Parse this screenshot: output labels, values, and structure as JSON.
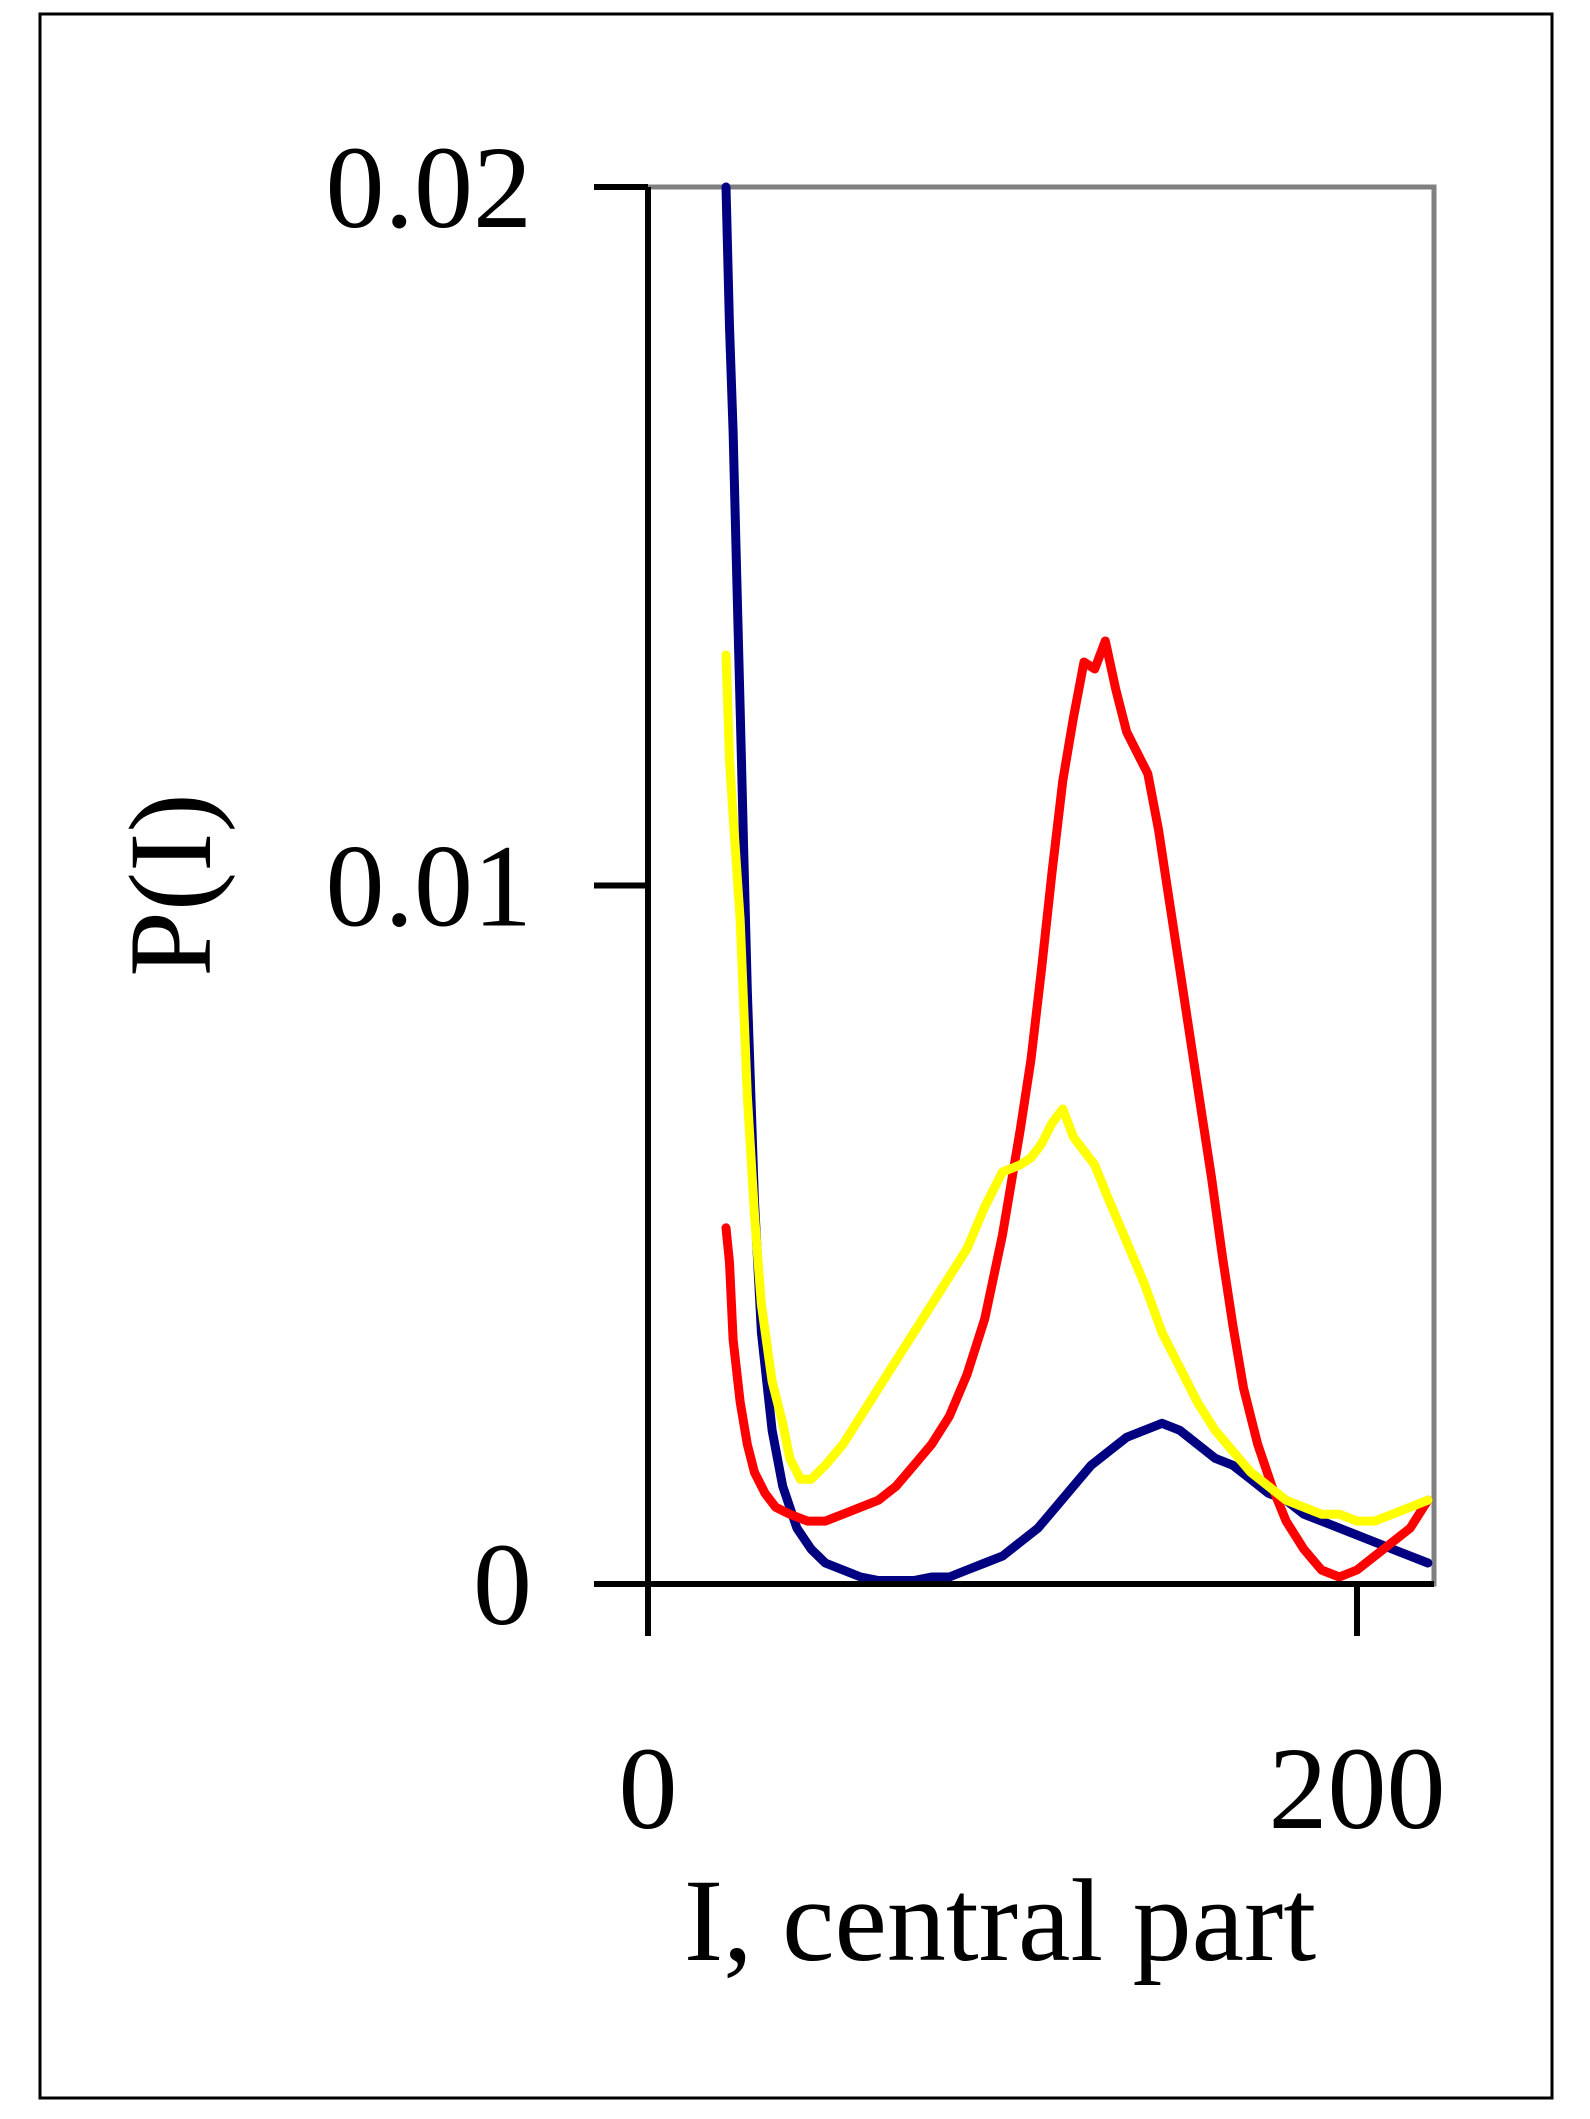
{
  "chart_data": {
    "type": "line",
    "title": "",
    "xlabel": "I, central part",
    "ylabel": "P(I)",
    "xlim": [
      0,
      220
    ],
    "ylim": [
      0,
      0.02
    ],
    "x_ticks": [
      {
        "value": 0,
        "label": "0"
      },
      {
        "value": 200,
        "label": "200"
      }
    ],
    "y_ticks": [
      {
        "value": 0,
        "label": "0"
      },
      {
        "value": 0.01,
        "label": "0.01"
      },
      {
        "value": 0.02,
        "label": "0.02"
      }
    ],
    "grid": false,
    "legend": "none",
    "series": [
      {
        "color": "#000080",
        "x": [
          22,
          23,
          24,
          25,
          26,
          27,
          28,
          30,
          32,
          35,
          38,
          42,
          46,
          50,
          55,
          60,
          65,
          70,
          75,
          80,
          85,
          90,
          95,
          100,
          105,
          110,
          115,
          120,
          125,
          130,
          135,
          140,
          145,
          150,
          155,
          160,
          165,
          170,
          175,
          180,
          185,
          190,
          195,
          200,
          205,
          210,
          215,
          220
        ],
        "y": [
          0.02,
          0.018,
          0.0165,
          0.0145,
          0.0125,
          0.0105,
          0.0085,
          0.0055,
          0.0036,
          0.0022,
          0.0014,
          0.0008,
          0.0005,
          0.0003,
          0.0002,
          0.0001,
          5e-05,
          5e-05,
          5e-05,
          0.0001,
          0.0001,
          0.0002,
          0.0003,
          0.0004,
          0.0006,
          0.0008,
          0.0011,
          0.0014,
          0.0017,
          0.0019,
          0.0021,
          0.0022,
          0.0023,
          0.0022,
          0.002,
          0.0018,
          0.0017,
          0.0015,
          0.0013,
          0.0012,
          0.001,
          0.0009,
          0.0008,
          0.0007,
          0.0006,
          0.0005,
          0.0004,
          0.0003
        ]
      },
      {
        "color": "#ff0000",
        "x": [
          22,
          23,
          24,
          26,
          28,
          30,
          33,
          36,
          40,
          45,
          50,
          55,
          60,
          65,
          70,
          75,
          80,
          85,
          90,
          95,
          100,
          105,
          108,
          111,
          114,
          117,
          120,
          123,
          126,
          129,
          132,
          135,
          138,
          141,
          144,
          147,
          150,
          153,
          156,
          159,
          162,
          165,
          168,
          172,
          176,
          180,
          185,
          190,
          195,
          200,
          205,
          210,
          215,
          220
        ],
        "y": [
          0.0051,
          0.0046,
          0.0035,
          0.0026,
          0.002,
          0.0016,
          0.0013,
          0.0011,
          0.001,
          0.0009,
          0.0009,
          0.001,
          0.0011,
          0.0012,
          0.0014,
          0.0017,
          0.002,
          0.0024,
          0.003,
          0.0038,
          0.005,
          0.0065,
          0.0075,
          0.0088,
          0.0102,
          0.0115,
          0.0124,
          0.0132,
          0.0131,
          0.0135,
          0.0128,
          0.0122,
          0.0119,
          0.0116,
          0.0108,
          0.0098,
          0.0088,
          0.0078,
          0.0068,
          0.0058,
          0.0047,
          0.0037,
          0.0028,
          0.002,
          0.0014,
          0.0009,
          0.0005,
          0.0002,
          0.0001,
          0.0002,
          0.0004,
          0.0006,
          0.0008,
          0.0012
        ]
      },
      {
        "color": "#ffff00",
        "x": [
          22,
          23,
          24,
          26,
          28,
          30,
          32,
          35,
          38,
          40,
          43,
          46,
          50,
          55,
          60,
          65,
          70,
          75,
          80,
          85,
          90,
          95,
          100,
          105,
          108,
          111,
          114,
          117,
          120,
          123,
          126,
          130,
          135,
          140,
          145,
          150,
          155,
          160,
          165,
          170,
          175,
          180,
          185,
          190,
          195,
          200,
          205,
          210,
          215,
          220
        ],
        "y": [
          0.0133,
          0.0118,
          0.011,
          0.0095,
          0.007,
          0.0053,
          0.004,
          0.0029,
          0.0023,
          0.0018,
          0.0015,
          0.0015,
          0.0017,
          0.002,
          0.0024,
          0.0028,
          0.0032,
          0.0036,
          0.004,
          0.0044,
          0.0048,
          0.0054,
          0.0059,
          0.006,
          0.0061,
          0.0063,
          0.0066,
          0.0068,
          0.0064,
          0.0062,
          0.006,
          0.0055,
          0.0049,
          0.0043,
          0.0036,
          0.0031,
          0.0026,
          0.0022,
          0.0019,
          0.0016,
          0.0014,
          0.0012,
          0.0011,
          0.001,
          0.001,
          0.0009,
          0.0009,
          0.001,
          0.0011,
          0.0012
        ]
      }
    ]
  }
}
